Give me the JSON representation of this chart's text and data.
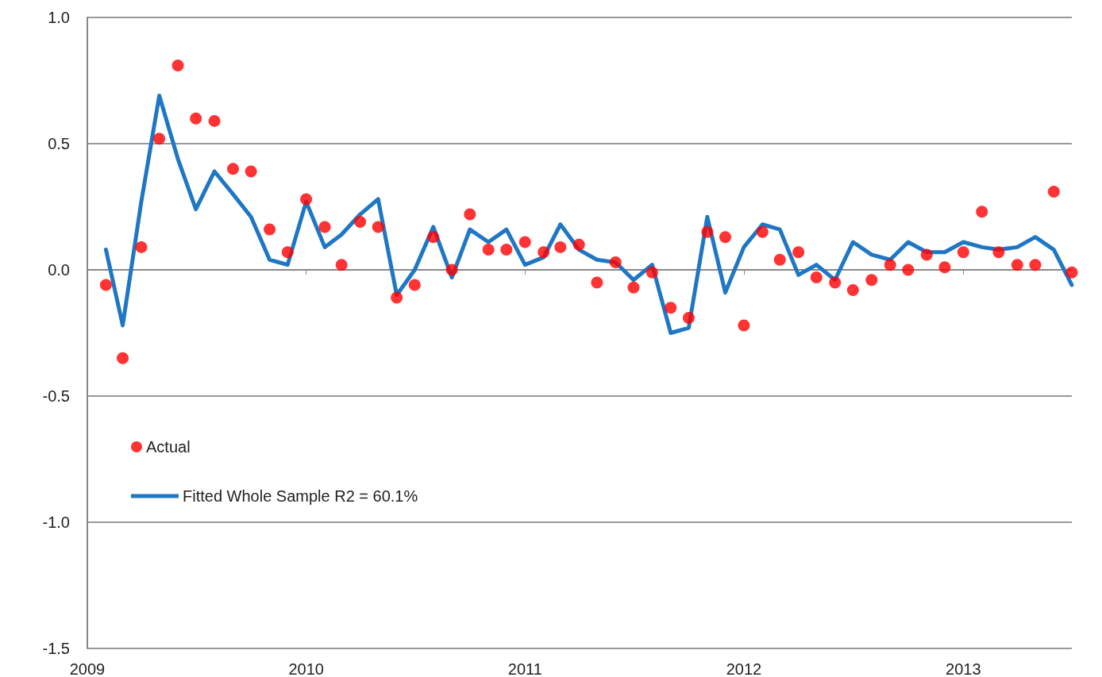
{
  "chart_data": {
    "type": "scatter",
    "x": [
      "2009-02",
      "2009-03",
      "2009-04",
      "2009-05",
      "2009-06",
      "2009-07",
      "2009-08",
      "2009-09",
      "2009-10",
      "2009-11",
      "2009-12",
      "2010-01",
      "2010-02",
      "2010-03",
      "2010-04",
      "2010-05",
      "2010-06",
      "2010-07",
      "2010-08",
      "2010-09",
      "2010-10",
      "2010-11",
      "2010-12",
      "2011-01",
      "2011-02",
      "2011-03",
      "2011-04",
      "2011-05",
      "2011-06",
      "2011-07",
      "2011-08",
      "2011-09",
      "2011-10",
      "2011-11",
      "2011-12",
      "2012-01",
      "2012-02",
      "2012-03",
      "2012-04",
      "2012-05",
      "2012-06",
      "2012-07",
      "2012-08",
      "2012-09",
      "2012-10",
      "2012-11",
      "2012-12",
      "2013-01",
      "2013-02",
      "2013-03",
      "2013-04",
      "2013-05",
      "2013-06",
      "2013-07"
    ],
    "series": [
      {
        "name": "Actual",
        "color": "#ff0000",
        "marker": "circle",
        "values": [
          -0.06,
          -0.35,
          0.09,
          0.52,
          0.81,
          0.6,
          0.59,
          0.4,
          0.39,
          0.16,
          0.07,
          0.28,
          0.17,
          0.02,
          0.19,
          0.17,
          -0.11,
          -0.06,
          0.13,
          0.0,
          0.22,
          0.08,
          0.08,
          0.11,
          0.07,
          0.09,
          0.1,
          -0.05,
          0.03,
          -0.07,
          -0.01,
          -0.15,
          -0.19,
          0.15,
          0.13,
          -0.22,
          0.15,
          0.04,
          0.07,
          -0.03,
          -0.05,
          -0.08,
          -0.04,
          0.02,
          0.0,
          0.06,
          0.01,
          0.07,
          0.23,
          0.07,
          0.02,
          0.02,
          0.31,
          -0.01
        ]
      },
      {
        "name": "Fitted Whole Sample R2 = 60.1%",
        "type": "line",
        "color": "#1f77c4",
        "marker": "none",
        "line_style": "solid",
        "values": [
          0.08,
          -0.22,
          0.27,
          0.69,
          0.44,
          0.24,
          0.39,
          0.3,
          0.21,
          0.04,
          0.02,
          0.27,
          0.09,
          0.14,
          0.22,
          0.28,
          -0.1,
          0.0,
          0.17,
          -0.03,
          0.16,
          0.11,
          0.16,
          0.02,
          0.05,
          0.18,
          0.08,
          0.04,
          0.03,
          -0.04,
          0.02,
          -0.25,
          -0.23,
          0.21,
          -0.09,
          0.09,
          0.18,
          0.16,
          -0.02,
          0.02,
          -0.04,
          0.11,
          0.06,
          0.04,
          0.11,
          0.07,
          0.07,
          0.11,
          0.09,
          0.08,
          0.09,
          0.13,
          0.08,
          -0.06
        ]
      }
    ],
    "xlim": [
      "2009-01",
      "2013-07"
    ],
    "xticks": [
      "2009",
      "2010",
      "2011",
      "2012",
      "2013"
    ],
    "ylim": [
      -1.5,
      1.0
    ],
    "yticks": [
      {
        "value": -1.5,
        "label": "-1.5"
      },
      {
        "value": -1.0,
        "label": "-1.0"
      },
      {
        "value": -0.5,
        "label": "-0.5"
      },
      {
        "value": 0,
        "label": "0.0"
      },
      {
        "value": 0.5,
        "label": "0.5"
      },
      {
        "value": 1.0,
        "label": "1.0"
      }
    ],
    "grid": "y",
    "legend": "left"
  }
}
